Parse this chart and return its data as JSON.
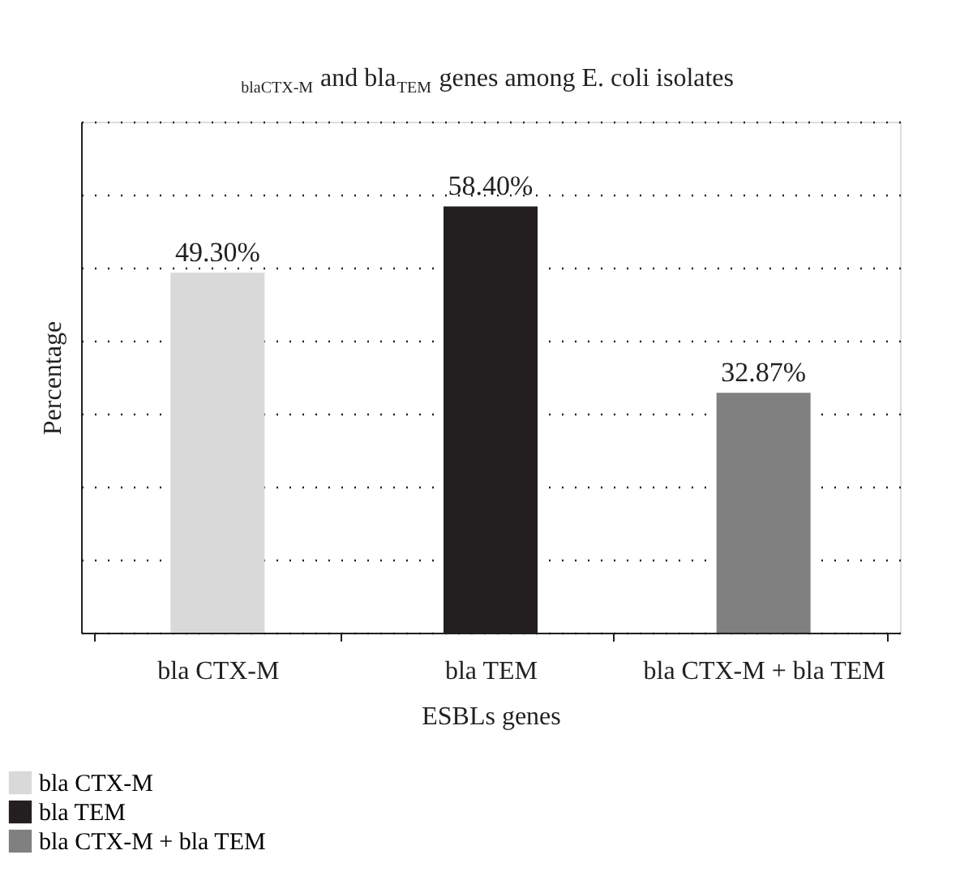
{
  "chart_data": {
    "type": "bar",
    "title": "$_{blaCTX-M}$ and bla$_{TEM}$ genes among E. coli isolates",
    "xlabel": "ESBLs genes",
    "ylabel": "Percentage",
    "categories": [
      "bla CTX-M",
      "bla TEM",
      "bla CTX-M + bla TEM"
    ],
    "series": [
      {
        "name": "bla CTX-M",
        "color": "#d9d9d9",
        "values": [
          49.3,
          null,
          null
        ],
        "value_labels": [
          "49.30%",
          null,
          null
        ]
      },
      {
        "name": "bla TEM",
        "color": "#231f20",
        "values": [
          null,
          58.4,
          null
        ],
        "value_labels": [
          null,
          "58.40%",
          null
        ]
      },
      {
        "name": "bla CTX-M + bla TEM",
        "color": "#808080",
        "values": [
          null,
          null,
          32.87
        ],
        "value_labels": [
          null,
          null,
          "32.87%"
        ]
      }
    ],
    "ylim": [
      0,
      70
    ],
    "yticks": [
      {
        "value": 0,
        "label": null
      },
      {
        "value": 10,
        "label": null
      },
      {
        "value": 20,
        "label": null
      },
      {
        "value": 30,
        "label": null
      },
      {
        "value": 40,
        "label": null
      },
      {
        "value": 50,
        "label": null
      },
      {
        "value": 60,
        "label": null
      },
      {
        "value": 70,
        "label": null
      }
    ],
    "grid": "y",
    "legend": "bottom left",
    "tick_labels": "x"
  }
}
